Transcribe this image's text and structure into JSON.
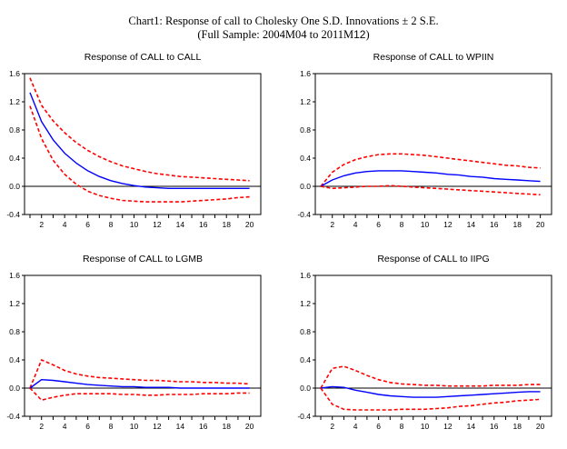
{
  "header": {
    "title_line1": "Chart1: Response of call to Cholesky One S.D. Innovations ± 2 S.E.",
    "title_line2_prefix": "(Full Sample: 2004M04 to 2011M",
    "title_line2_suffix": "12",
    "title_line2_close": ")"
  },
  "colors": {
    "response": "#0000ff",
    "bands": "#ff0000",
    "zero_line": "#000000",
    "frame": "#000000"
  },
  "chart_data": [
    {
      "type": "line",
      "title": "Response of CALL to CALL",
      "xlabel": "",
      "ylabel": "",
      "x": [
        1,
        2,
        3,
        4,
        5,
        6,
        7,
        8,
        9,
        10,
        11,
        12,
        13,
        14,
        15,
        16,
        17,
        18,
        19,
        20
      ],
      "xticks": [
        "2",
        "4",
        "6",
        "8",
        "10",
        "12",
        "14",
        "16",
        "18",
        "20"
      ],
      "yticks": [
        "1.6",
        "1.2",
        "0.8",
        "0.4",
        "0.0",
        "-0.4"
      ],
      "ylim": [
        -0.4,
        1.6
      ],
      "grid": false,
      "series": [
        {
          "name": "upper",
          "style": "dashed",
          "values": [
            1.54,
            1.15,
            0.93,
            0.76,
            0.62,
            0.51,
            0.42,
            0.35,
            0.29,
            0.25,
            0.21,
            0.18,
            0.16,
            0.14,
            0.13,
            0.12,
            0.11,
            0.1,
            0.09,
            0.08
          ]
        },
        {
          "name": "response",
          "style": "solid",
          "values": [
            1.33,
            0.92,
            0.66,
            0.47,
            0.33,
            0.22,
            0.14,
            0.08,
            0.04,
            0.01,
            -0.01,
            -0.02,
            -0.03,
            -0.03,
            -0.03,
            -0.03,
            -0.03,
            -0.03,
            -0.03,
            -0.03
          ]
        },
        {
          "name": "lower",
          "style": "dashed",
          "values": [
            1.14,
            0.68,
            0.37,
            0.17,
            0.03,
            -0.07,
            -0.13,
            -0.17,
            -0.2,
            -0.21,
            -0.22,
            -0.22,
            -0.22,
            -0.22,
            -0.21,
            -0.2,
            -0.19,
            -0.18,
            -0.16,
            -0.15
          ]
        }
      ]
    },
    {
      "type": "line",
      "title": "Response of CALL to WPIIN",
      "xlabel": "",
      "ylabel": "",
      "x": [
        1,
        2,
        3,
        4,
        5,
        6,
        7,
        8,
        9,
        10,
        11,
        12,
        13,
        14,
        15,
        16,
        17,
        18,
        19,
        20
      ],
      "xticks": [
        "2",
        "4",
        "6",
        "8",
        "10",
        "12",
        "14",
        "16",
        "18",
        "20"
      ],
      "yticks": [
        "1.6",
        "1.2",
        "0.8",
        "0.4",
        "0.0",
        "-0.4"
      ],
      "ylim": [
        -0.4,
        1.6
      ],
      "grid": false,
      "series": [
        {
          "name": "upper",
          "style": "dashed",
          "values": [
            0.0,
            0.2,
            0.31,
            0.38,
            0.42,
            0.45,
            0.46,
            0.46,
            0.45,
            0.44,
            0.42,
            0.4,
            0.38,
            0.36,
            0.34,
            0.32,
            0.3,
            0.29,
            0.27,
            0.26
          ]
        },
        {
          "name": "response",
          "style": "solid",
          "values": [
            0.0,
            0.09,
            0.15,
            0.19,
            0.21,
            0.22,
            0.22,
            0.22,
            0.21,
            0.2,
            0.19,
            0.17,
            0.16,
            0.14,
            0.13,
            0.11,
            0.1,
            0.09,
            0.08,
            0.07
          ]
        },
        {
          "name": "lower",
          "style": "dashed",
          "values": [
            0.0,
            -0.03,
            -0.02,
            -0.01,
            0.0,
            0.0,
            0.01,
            0.0,
            -0.01,
            -0.02,
            -0.03,
            -0.04,
            -0.05,
            -0.06,
            -0.07,
            -0.08,
            -0.09,
            -0.1,
            -0.11,
            -0.12
          ]
        }
      ]
    },
    {
      "type": "line",
      "title": "Response of CALL to LGMB",
      "xlabel": "",
      "ylabel": "",
      "x": [
        1,
        2,
        3,
        4,
        5,
        6,
        7,
        8,
        9,
        10,
        11,
        12,
        13,
        14,
        15,
        16,
        17,
        18,
        19,
        20
      ],
      "xticks": [
        "2",
        "4",
        "6",
        "8",
        "10",
        "12",
        "14",
        "16",
        "18",
        "20"
      ],
      "yticks": [
        "1.6",
        "1.2",
        "0.8",
        "0.4",
        "0.0",
        "-0.4"
      ],
      "ylim": [
        -0.4,
        1.6
      ],
      "grid": false,
      "series": [
        {
          "name": "upper",
          "style": "dashed",
          "values": [
            0.0,
            0.4,
            0.33,
            0.25,
            0.2,
            0.17,
            0.15,
            0.14,
            0.13,
            0.12,
            0.11,
            0.11,
            0.1,
            0.09,
            0.09,
            0.08,
            0.08,
            0.07,
            0.07,
            0.06
          ]
        },
        {
          "name": "response",
          "style": "solid",
          "values": [
            0.0,
            0.12,
            0.11,
            0.09,
            0.07,
            0.05,
            0.04,
            0.03,
            0.02,
            0.02,
            0.01,
            0.01,
            0.01,
            0.0,
            0.0,
            0.0,
            0.0,
            0.0,
            0.0,
            0.0
          ]
        },
        {
          "name": "lower",
          "style": "dashed",
          "values": [
            0.0,
            -0.17,
            -0.13,
            -0.1,
            -0.08,
            -0.08,
            -0.08,
            -0.08,
            -0.09,
            -0.09,
            -0.1,
            -0.1,
            -0.09,
            -0.09,
            -0.09,
            -0.08,
            -0.08,
            -0.08,
            -0.07,
            -0.07
          ]
        }
      ]
    },
    {
      "type": "line",
      "title": "Response of CALL to IIPG",
      "xlabel": "",
      "ylabel": "",
      "x": [
        1,
        2,
        3,
        4,
        5,
        6,
        7,
        8,
        9,
        10,
        11,
        12,
        13,
        14,
        15,
        16,
        17,
        18,
        19,
        20
      ],
      "xticks": [
        "2",
        "4",
        "6",
        "8",
        "10",
        "12",
        "14",
        "16",
        "18",
        "20"
      ],
      "yticks": [
        "1.6",
        "1.2",
        "0.8",
        "0.4",
        "0.0",
        "-0.4"
      ],
      "ylim": [
        -0.4,
        1.6
      ],
      "grid": false,
      "series": [
        {
          "name": "upper",
          "style": "dashed",
          "values": [
            0.0,
            0.28,
            0.31,
            0.25,
            0.18,
            0.12,
            0.08,
            0.06,
            0.05,
            0.04,
            0.04,
            0.03,
            0.03,
            0.03,
            0.03,
            0.04,
            0.04,
            0.04,
            0.05,
            0.05
          ]
        },
        {
          "name": "response",
          "style": "solid",
          "values": [
            0.0,
            0.02,
            0.01,
            -0.03,
            -0.06,
            -0.09,
            -0.11,
            -0.12,
            -0.13,
            -0.13,
            -0.13,
            -0.12,
            -0.11,
            -0.1,
            -0.09,
            -0.08,
            -0.07,
            -0.06,
            -0.05,
            -0.05
          ]
        },
        {
          "name": "lower",
          "style": "dashed",
          "values": [
            0.0,
            -0.23,
            -0.3,
            -0.31,
            -0.31,
            -0.31,
            -0.31,
            -0.3,
            -0.3,
            -0.3,
            -0.29,
            -0.28,
            -0.26,
            -0.25,
            -0.23,
            -0.21,
            -0.2,
            -0.18,
            -0.17,
            -0.16
          ]
        }
      ]
    }
  ]
}
